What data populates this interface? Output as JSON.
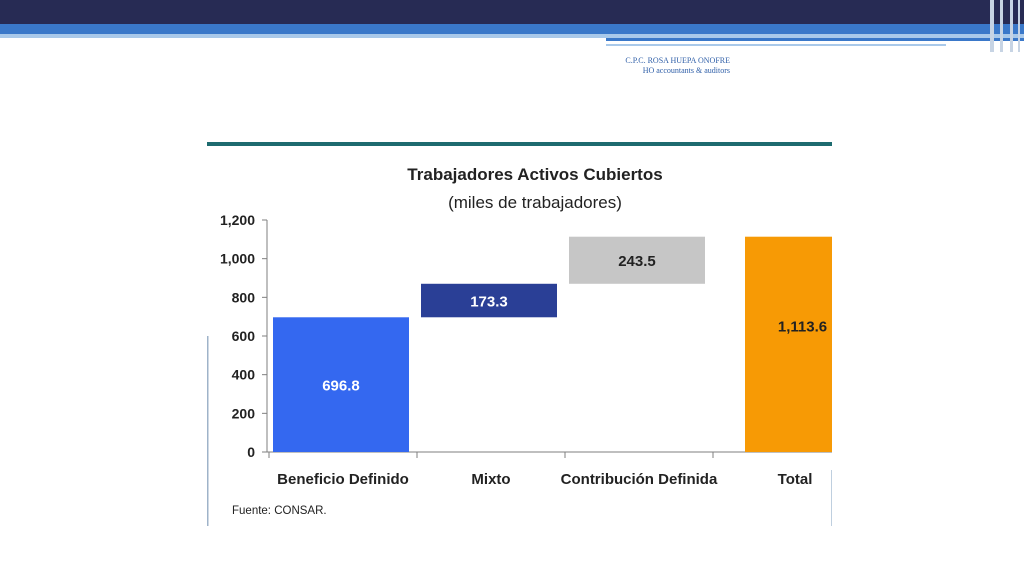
{
  "header": {
    "author": "C.P.C. ROSA HUEPA ONOFRE",
    "firm": "HO accountants & auditors"
  },
  "colors": {
    "band_dark": "#272b54",
    "band_blue": "#3a78c9",
    "band_light": "#a9c9ea",
    "teal_rule": "#1d6b6f",
    "bar_blue": "#3468f0",
    "bar_navy": "#2a3f96",
    "bar_gray": "#c6c6c6",
    "bar_orange": "#f79a05"
  },
  "chart_data": {
    "type": "waterfall",
    "title": "Trabajadores Activos Cubiertos",
    "subtitle": "(miles de trabajadores)",
    "categories": [
      "Beneficio Definido",
      "Mixto",
      "Contribución Definida",
      "Total"
    ],
    "values": [
      696.8,
      173.3,
      243.5,
      1113.6
    ],
    "data_labels": [
      "696.8",
      "173.3",
      "243.5",
      "1,113.6"
    ],
    "y_ticks": [
      "0",
      "200",
      "400",
      "600",
      "800",
      "1,000",
      "1,200"
    ],
    "ylim": [
      0,
      1200
    ],
    "grid": false,
    "legend": "none"
  },
  "footer": {
    "source": "Fuente: CONSAR."
  }
}
